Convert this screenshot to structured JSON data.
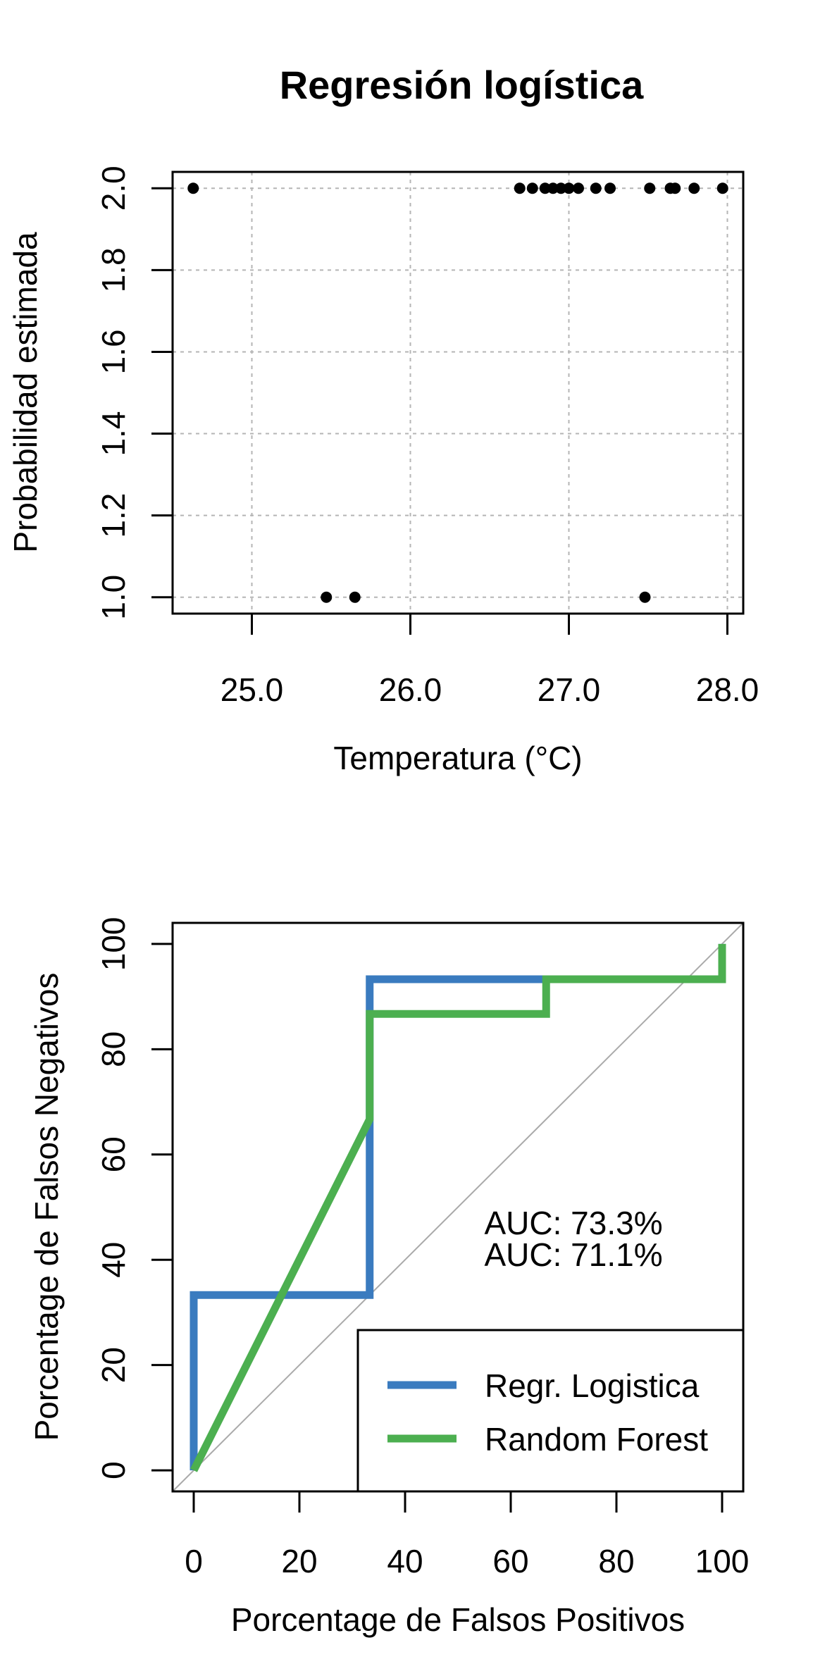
{
  "chart_data": [
    {
      "type": "scatter",
      "title": "Regresión logística",
      "xlabel": "Temperatura (°C)",
      "ylabel": "Probabilidad estimada",
      "xlim": [
        24.5,
        28.1
      ],
      "ylim": [
        0.96,
        2.04
      ],
      "xticks": [
        25.0,
        26.0,
        27.0,
        28.0
      ],
      "xtick_labels": [
        "25.0",
        "26.0",
        "27.0",
        "28.0"
      ],
      "yticks": [
        1.0,
        1.2,
        1.4,
        1.6,
        1.8,
        2.0
      ],
      "ytick_labels": [
        "1.0",
        "1.2",
        "1.4",
        "1.6",
        "1.8",
        "2.0"
      ],
      "grid": true,
      "series": [
        {
          "color": "#000000",
          "points": [
            {
              "x": 24.63,
              "y": 2.0
            },
            {
              "x": 26.69,
              "y": 2.0
            },
            {
              "x": 26.77,
              "y": 2.0
            },
            {
              "x": 26.85,
              "y": 2.0
            },
            {
              "x": 26.9,
              "y": 2.0
            },
            {
              "x": 26.95,
              "y": 2.0
            },
            {
              "x": 27.0,
              "y": 2.0
            },
            {
              "x": 27.06,
              "y": 2.0
            },
            {
              "x": 27.17,
              "y": 2.0
            },
            {
              "x": 27.26,
              "y": 2.0
            },
            {
              "x": 27.51,
              "y": 2.0
            },
            {
              "x": 27.64,
              "y": 2.0
            },
            {
              "x": 27.67,
              "y": 2.0
            },
            {
              "x": 27.79,
              "y": 2.0
            },
            {
              "x": 27.97,
              "y": 2.0
            },
            {
              "x": 25.47,
              "y": 1.0
            },
            {
              "x": 25.65,
              "y": 1.0
            },
            {
              "x": 27.48,
              "y": 1.0
            }
          ]
        }
      ]
    },
    {
      "type": "line",
      "title": "",
      "xlabel": "Porcentage de Falsos Positivos",
      "ylabel": "Porcentage de Falsos Negativos",
      "xlim": [
        -4,
        104
      ],
      "ylim": [
        -4,
        104
      ],
      "xticks": [
        0,
        20,
        40,
        60,
        80,
        100
      ],
      "xtick_labels": [
        "0",
        "20",
        "40",
        "60",
        "80",
        "100"
      ],
      "yticks": [
        0,
        20,
        40,
        60,
        80,
        100
      ],
      "ytick_labels": [
        "0",
        "20",
        "40",
        "60",
        "80",
        "100"
      ],
      "grid": false,
      "reference_line": {
        "from": [
          0,
          0
        ],
        "to": [
          100,
          100
        ],
        "color": "#aaaaaa"
      },
      "series": [
        {
          "name": "Regr. Logistica",
          "color": "#3a7bbf",
          "points": [
            [
              0,
              0
            ],
            [
              0,
              33.3
            ],
            [
              33.3,
              33.3
            ],
            [
              33.3,
              93.3
            ],
            [
              66.7,
              93.3
            ],
            [
              100,
              93.3
            ],
            [
              100,
              100
            ]
          ]
        },
        {
          "name": "Random Forest",
          "color": "#4caf50",
          "points": [
            [
              0,
              0
            ],
            [
              33.3,
              66.7
            ],
            [
              33.3,
              86.7
            ],
            [
              66.7,
              86.7
            ],
            [
              66.7,
              93.3
            ],
            [
              100,
              93.3
            ],
            [
              100,
              100
            ]
          ]
        }
      ],
      "annotations": [
        {
          "text": "AUC: 73.3%",
          "color": "#3a7bbf",
          "x": 55,
          "y": 47
        },
        {
          "text": "AUC: 71.1%",
          "color": "#4caf50",
          "x": 55,
          "y": 41
        }
      ],
      "legend": {
        "placement": "bottom-right",
        "entries": [
          "Regr. Logistica",
          "Random Forest"
        ]
      }
    }
  ]
}
